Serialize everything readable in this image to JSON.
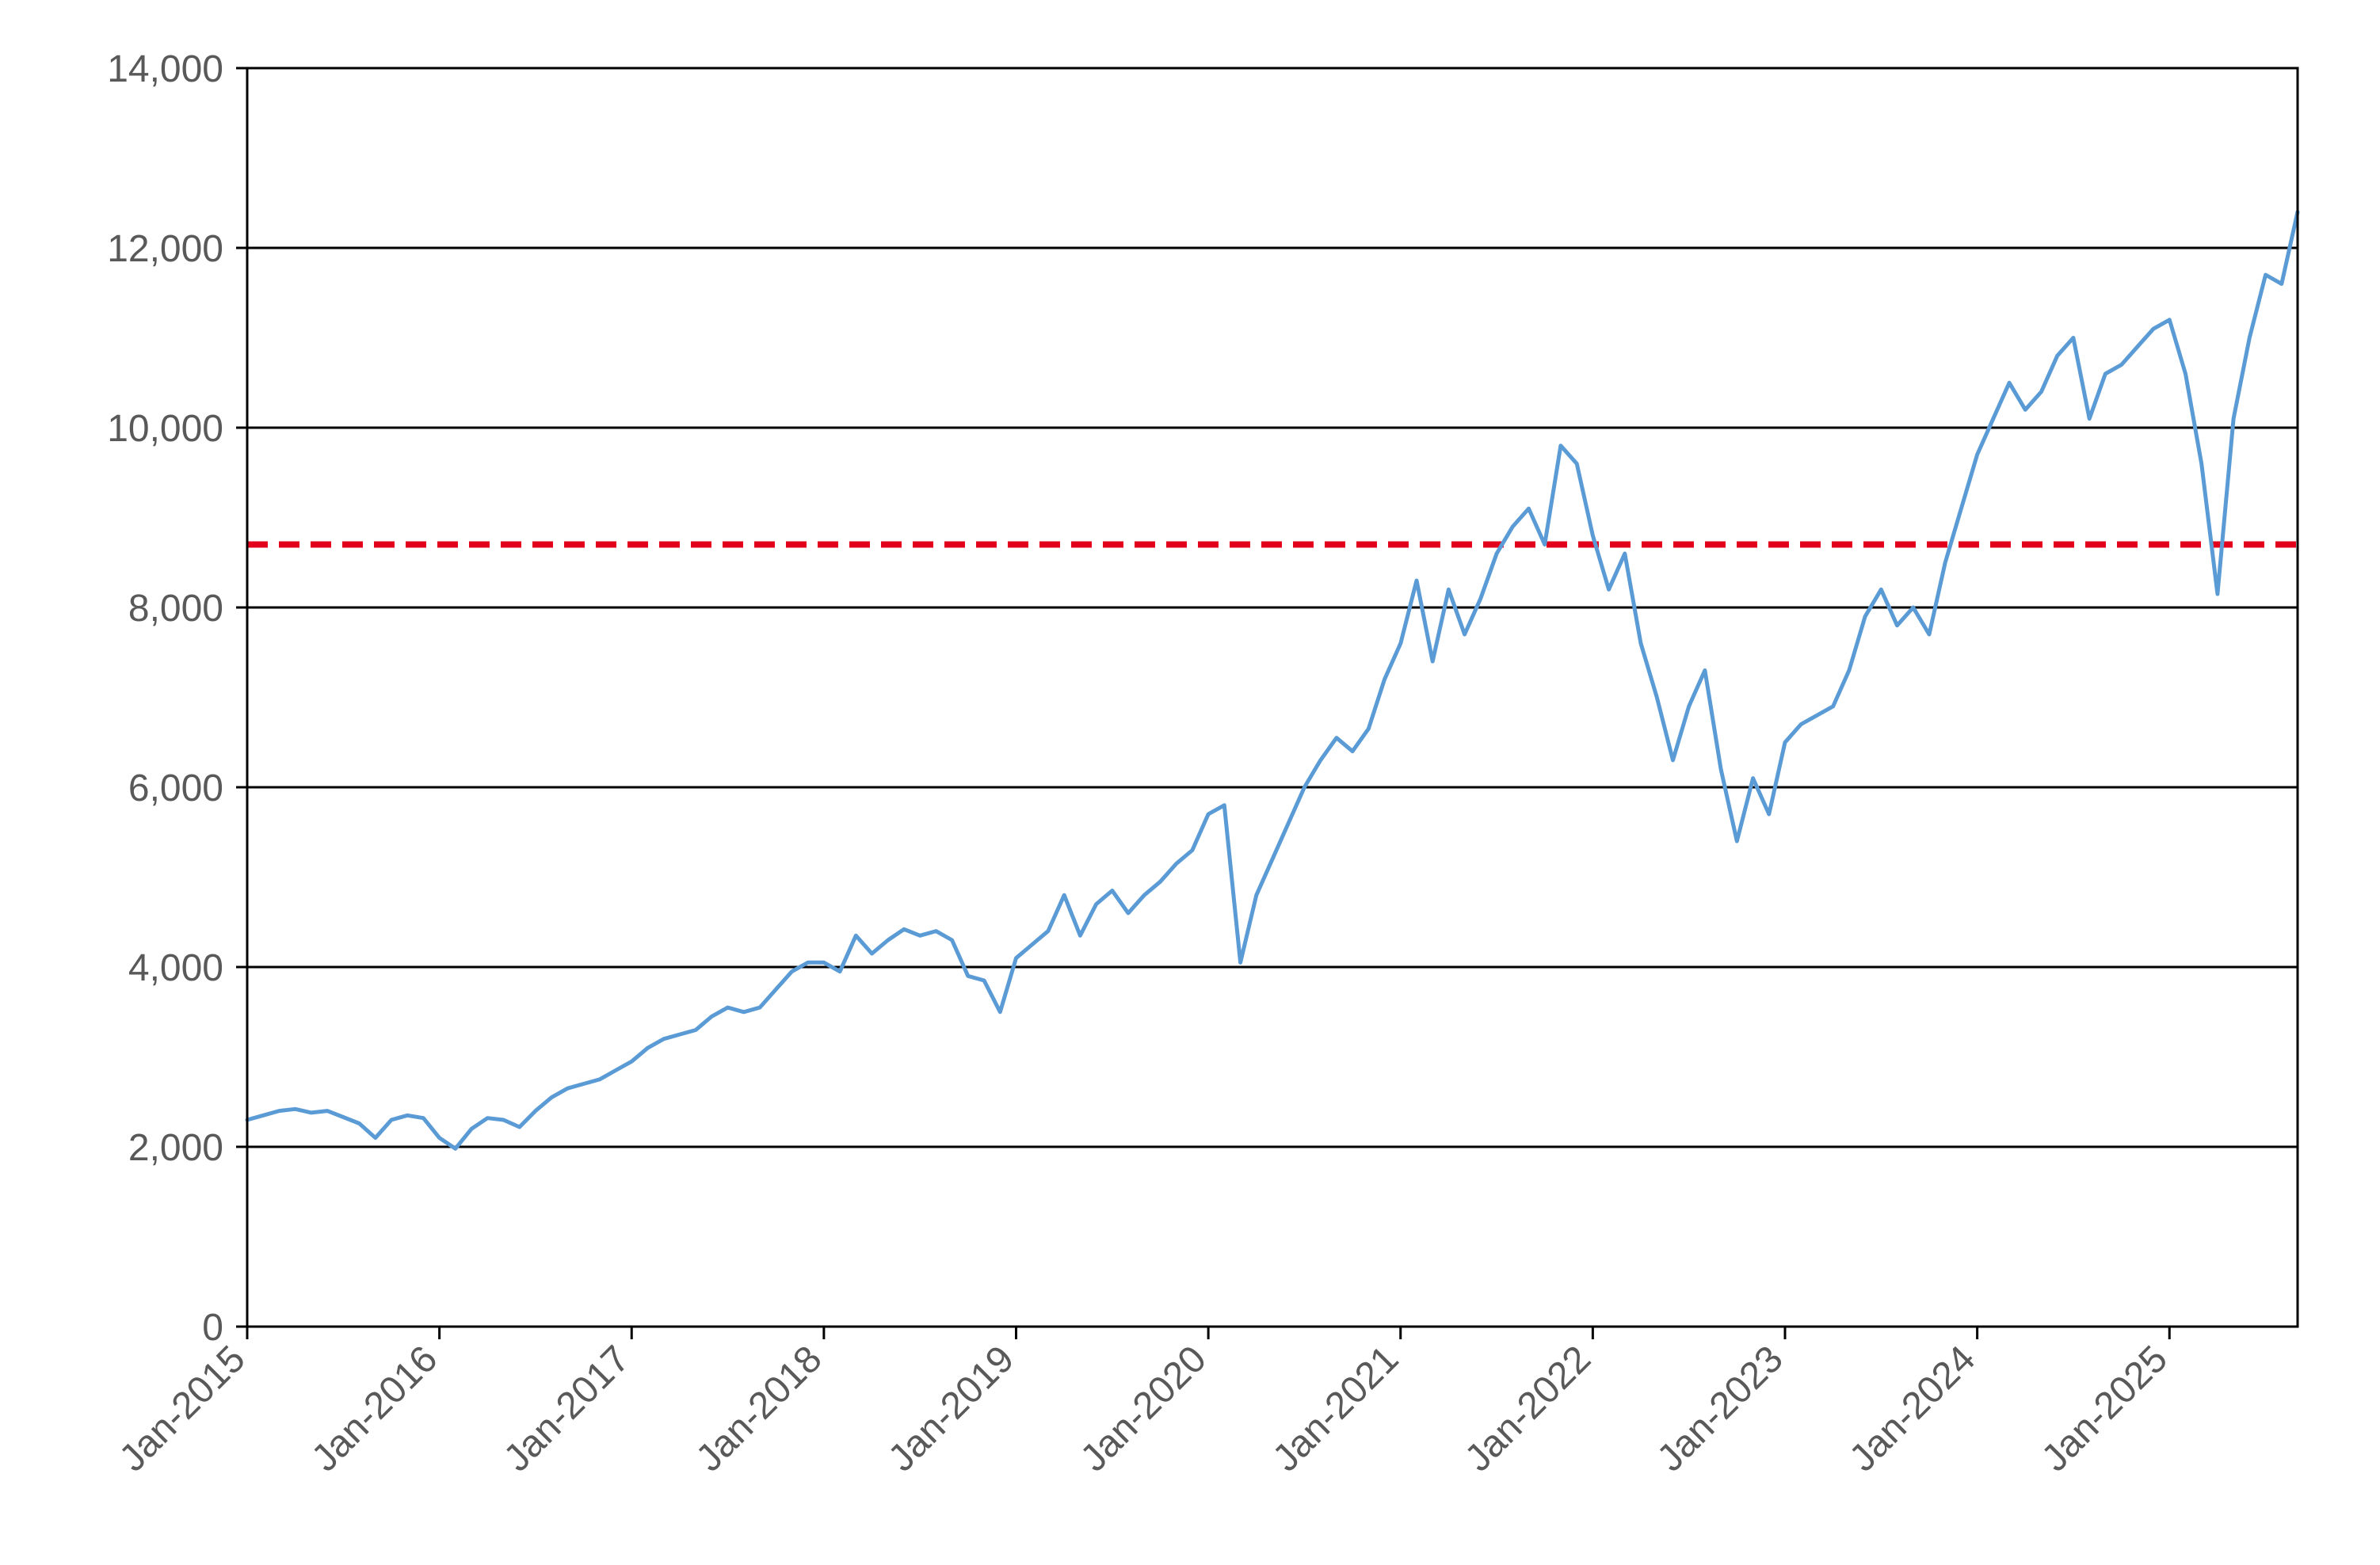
{
  "chart_data": {
    "type": "line",
    "title": "",
    "xlabel": "",
    "ylabel": "",
    "ylim": [
      0,
      14000
    ],
    "yticks": [
      0,
      2000,
      4000,
      6000,
      8000,
      10000,
      12000,
      14000
    ],
    "ytick_labels": [
      "0",
      "2,000",
      "4,000",
      "6,000",
      "8,000",
      "10,000",
      "12,000",
      "14,000"
    ],
    "xlim": [
      "2015-01",
      "2025-09"
    ],
    "xtick_labels": [
      "Jan-2015",
      "Jan-2016",
      "Jan-2017",
      "Jan-2018",
      "Jan-2019",
      "Jan-2020",
      "Jan-2021",
      "Jan-2022",
      "Jan-2023",
      "Jan-2024",
      "Jan-2025"
    ],
    "grid": "horizontal",
    "legend": "none",
    "reference_line": {
      "value": 8700,
      "style": "dashed",
      "color": "#e3001b"
    },
    "series": [
      {
        "color": "#5b9bd5",
        "points": [
          [
            "2015-01",
            2300
          ],
          [
            "2015-02",
            2350
          ],
          [
            "2015-03",
            2400
          ],
          [
            "2015-04",
            2420
          ],
          [
            "2015-05",
            2380
          ],
          [
            "2015-06",
            2400
          ],
          [
            "2015-07",
            2330
          ],
          [
            "2015-08",
            2260
          ],
          [
            "2015-09",
            2100
          ],
          [
            "2015-10",
            2300
          ],
          [
            "2015-11",
            2350
          ],
          [
            "2015-12",
            2320
          ],
          [
            "2016-01",
            2100
          ],
          [
            "2016-02",
            1980
          ],
          [
            "2016-03",
            2200
          ],
          [
            "2016-04",
            2320
          ],
          [
            "2016-05",
            2300
          ],
          [
            "2016-06",
            2220
          ],
          [
            "2016-07",
            2400
          ],
          [
            "2016-08",
            2550
          ],
          [
            "2016-09",
            2650
          ],
          [
            "2016-10",
            2700
          ],
          [
            "2016-11",
            2750
          ],
          [
            "2016-12",
            2850
          ],
          [
            "2017-01",
            2950
          ],
          [
            "2017-02",
            3100
          ],
          [
            "2017-03",
            3200
          ],
          [
            "2017-04",
            3250
          ],
          [
            "2017-05",
            3300
          ],
          [
            "2017-06",
            3450
          ],
          [
            "2017-07",
            3550
          ],
          [
            "2017-08",
            3500
          ],
          [
            "2017-09",
            3550
          ],
          [
            "2017-10",
            3750
          ],
          [
            "2017-11",
            3950
          ],
          [
            "2017-12",
            4050
          ],
          [
            "2018-01",
            4050
          ],
          [
            "2018-02",
            3950
          ],
          [
            "2018-03",
            4350
          ],
          [
            "2018-04",
            4150
          ],
          [
            "2018-05",
            4300
          ],
          [
            "2018-06",
            4420
          ],
          [
            "2018-07",
            4350
          ],
          [
            "2018-08",
            4400
          ],
          [
            "2018-09",
            4300
          ],
          [
            "2018-10",
            3900
          ],
          [
            "2018-11",
            3850
          ],
          [
            "2018-12",
            3500
          ],
          [
            "2019-01",
            4100
          ],
          [
            "2019-02",
            4250
          ],
          [
            "2019-03",
            4400
          ],
          [
            "2019-04",
            4800
          ],
          [
            "2019-05",
            4350
          ],
          [
            "2019-06",
            4700
          ],
          [
            "2019-07",
            4850
          ],
          [
            "2019-08",
            4600
          ],
          [
            "2019-09",
            4800
          ],
          [
            "2019-10",
            4950
          ],
          [
            "2019-11",
            5150
          ],
          [
            "2019-12",
            5300
          ],
          [
            "2020-01",
            5700
          ],
          [
            "2020-02",
            5800
          ],
          [
            "2020-03",
            4050
          ],
          [
            "2020-04",
            4800
          ],
          [
            "2020-05",
            5200
          ],
          [
            "2020-06",
            5600
          ],
          [
            "2020-07",
            6000
          ],
          [
            "2020-08",
            6300
          ],
          [
            "2020-09",
            6550
          ],
          [
            "2020-10",
            6400
          ],
          [
            "2020-11",
            6650
          ],
          [
            "2020-12",
            7200
          ],
          [
            "2021-01",
            7600
          ],
          [
            "2021-02",
            8300
          ],
          [
            "2021-03",
            7400
          ],
          [
            "2021-04",
            8200
          ],
          [
            "2021-05",
            7700
          ],
          [
            "2021-06",
            8100
          ],
          [
            "2021-07",
            8600
          ],
          [
            "2021-08",
            8900
          ],
          [
            "2021-09",
            9100
          ],
          [
            "2021-10",
            8700
          ],
          [
            "2021-11",
            9800
          ],
          [
            "2021-12",
            9600
          ],
          [
            "2022-01",
            8800
          ],
          [
            "2022-02",
            8200
          ],
          [
            "2022-03",
            8600
          ],
          [
            "2022-04",
            7600
          ],
          [
            "2022-05",
            7000
          ],
          [
            "2022-06",
            6300
          ],
          [
            "2022-07",
            6900
          ],
          [
            "2022-08",
            7300
          ],
          [
            "2022-09",
            6200
          ],
          [
            "2022-10",
            5400
          ],
          [
            "2022-11",
            6100
          ],
          [
            "2022-12",
            5700
          ],
          [
            "2023-01",
            6500
          ],
          [
            "2023-02",
            6700
          ],
          [
            "2023-03",
            6800
          ],
          [
            "2023-04",
            6900
          ],
          [
            "2023-05",
            7300
          ],
          [
            "2023-06",
            7900
          ],
          [
            "2023-07",
            8200
          ],
          [
            "2023-08",
            7800
          ],
          [
            "2023-09",
            8000
          ],
          [
            "2023-10",
            7700
          ],
          [
            "2023-11",
            8500
          ],
          [
            "2023-12",
            9100
          ],
          [
            "2024-01",
            9700
          ],
          [
            "2024-02",
            10100
          ],
          [
            "2024-03",
            10500
          ],
          [
            "2024-04",
            10200
          ],
          [
            "2024-05",
            10400
          ],
          [
            "2024-06",
            10800
          ],
          [
            "2024-07",
            11000
          ],
          [
            "2024-08",
            10100
          ],
          [
            "2024-09",
            10600
          ],
          [
            "2024-10",
            10700
          ],
          [
            "2024-11",
            10900
          ],
          [
            "2024-12",
            11100
          ],
          [
            "2025-01",
            11200
          ],
          [
            "2025-02",
            10600
          ],
          [
            "2025-03",
            9600
          ],
          [
            "2025-04",
            8150
          ],
          [
            "2025-05",
            10100
          ],
          [
            "2025-06",
            11000
          ],
          [
            "2025-07",
            11700
          ],
          [
            "2025-08",
            11600
          ],
          [
            "2025-09",
            12400
          ]
        ]
      }
    ]
  }
}
